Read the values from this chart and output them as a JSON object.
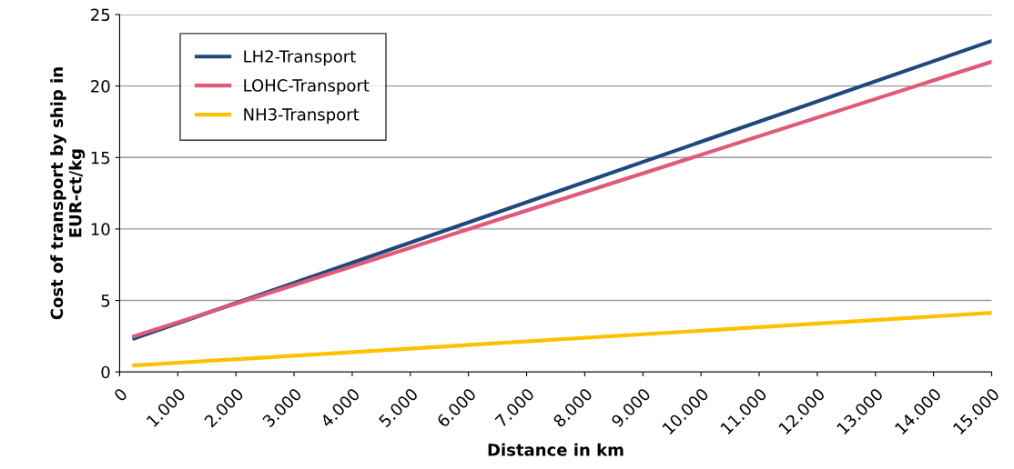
{
  "chart_data": {
    "type": "line",
    "xlabel": "Distance in km",
    "ylabel": "Cost of transport by ship in\nEUR-ct/kg",
    "series": [
      {
        "name": "LH2-Transport",
        "color": "#1f497d",
        "values": [
          2.35,
          23.15
        ]
      },
      {
        "name": "LOHC-Transport",
        "color": "#e05a78",
        "values": [
          2.5,
          21.7
        ]
      },
      {
        "name": "NH3-Transport",
        "color": "#ffc000",
        "values": [
          0.45,
          4.13
        ]
      }
    ],
    "x": [
      250,
      15000
    ],
    "xlim": [
      0,
      15000
    ],
    "ylim": [
      0,
      25
    ],
    "xticks": [
      0,
      {
        "value": 1000,
        "label": "1.000"
      },
      {
        "value": 2000,
        "label": "2.000"
      },
      {
        "value": 3000,
        "label": "3.000"
      },
      {
        "value": 4000,
        "label": "4.000"
      },
      {
        "value": 5000,
        "label": "5.000"
      },
      {
        "value": 6000,
        "label": "6.000"
      },
      {
        "value": 7000,
        "label": "7.000"
      },
      {
        "value": 8000,
        "label": "8.000"
      },
      {
        "value": 9000,
        "label": "9.000"
      },
      {
        "value": 10000,
        "label": "10.000"
      },
      {
        "value": 11000,
        "label": "11.000"
      },
      {
        "value": 12000,
        "label": "12.000"
      },
      {
        "value": 13000,
        "label": "13.000"
      },
      {
        "value": 14000,
        "label": "14.000"
      },
      {
        "value": 15000,
        "label": "15.000"
      }
    ],
    "yticks": [
      0,
      5,
      10,
      15,
      20,
      25
    ],
    "grid": "y",
    "legend": "top left",
    "marker": "none",
    "line_style": "solid"
  }
}
